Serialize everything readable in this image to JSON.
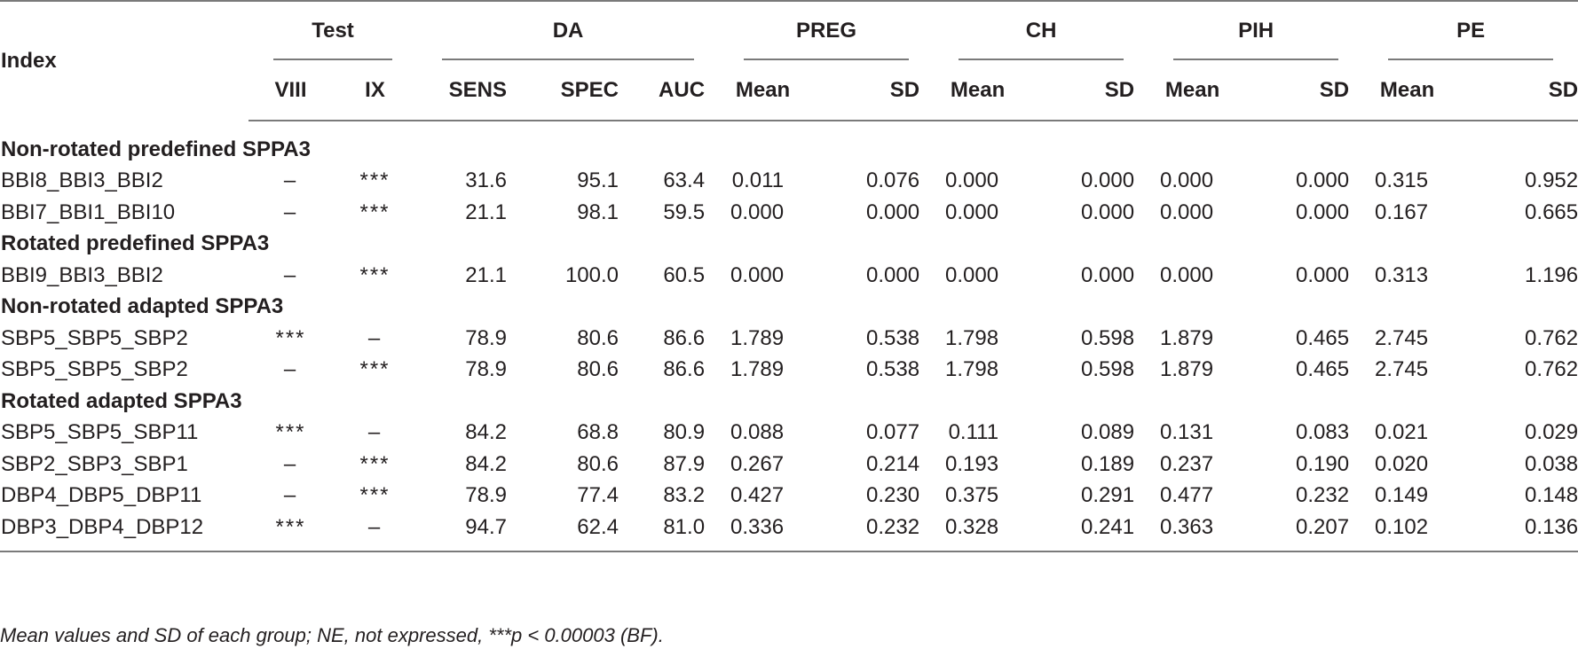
{
  "header": {
    "index": "Index",
    "test": "Test",
    "da": "DA",
    "preg": "PREG",
    "ch": "CH",
    "pih": "PIH",
    "pe": "PE",
    "sub": {
      "viii": "VIII",
      "ix": "IX",
      "sens": "SENS",
      "spec": "SPEC",
      "auc": "AUC",
      "mean": "Mean",
      "sd": "SD"
    }
  },
  "sections": [
    {
      "title": "Non-rotated predefined SPPA3",
      "rows": [
        [
          "BBI8_BBI3_BBI2",
          "–",
          "***",
          "31.6",
          "95.1",
          "63.4",
          "0.011",
          "0.076",
          "0.000",
          "0.000",
          "0.000",
          "0.000",
          "0.315",
          "0.952"
        ],
        [
          "BBI7_BBI1_BBI10",
          "–",
          "***",
          "21.1",
          "98.1",
          "59.5",
          "0.000",
          "0.000",
          "0.000",
          "0.000",
          "0.000",
          "0.000",
          "0.167",
          "0.665"
        ]
      ]
    },
    {
      "title": "Rotated predefined SPPA3",
      "rows": [
        [
          "BBI9_BBI3_BBI2",
          "–",
          "***",
          "21.1",
          "100.0",
          "60.5",
          "0.000",
          "0.000",
          "0.000",
          "0.000",
          "0.000",
          "0.000",
          "0.313",
          "1.196"
        ]
      ]
    },
    {
      "title": "Non-rotated adapted SPPA3",
      "rows": [
        [
          "SBP5_SBP5_SBP2",
          "***",
          "–",
          "78.9",
          "80.6",
          "86.6",
          "1.789",
          "0.538",
          "1.798",
          "0.598",
          "1.879",
          "0.465",
          "2.745",
          "0.762"
        ],
        [
          "SBP5_SBP5_SBP2",
          "–",
          "***",
          "78.9",
          "80.6",
          "86.6",
          "1.789",
          "0.538",
          "1.798",
          "0.598",
          "1.879",
          "0.465",
          "2.745",
          "0.762"
        ]
      ]
    },
    {
      "title": "Rotated adapted SPPA3",
      "rows": [
        [
          "SBP5_SBP5_SBP11",
          "***",
          "–",
          "84.2",
          "68.8",
          "80.9",
          "0.088",
          "0.077",
          "0.111",
          "0.089",
          "0.131",
          "0.083",
          "0.021",
          "0.029"
        ],
        [
          "SBP2_SBP3_SBP1",
          "–",
          "***",
          "84.2",
          "80.6",
          "87.9",
          "0.267",
          "0.214",
          "0.193",
          "0.189",
          "0.237",
          "0.190",
          "0.020",
          "0.038"
        ],
        [
          "DBP4_DBP5_DBP11",
          "–",
          "***",
          "78.9",
          "77.4",
          "83.2",
          "0.427",
          "0.230",
          "0.375",
          "0.291",
          "0.477",
          "0.232",
          "0.149",
          "0.148"
        ],
        [
          "DBP3_DBP4_DBP12",
          "***",
          "–",
          "94.7",
          "62.4",
          "81.0",
          "0.336",
          "0.232",
          "0.328",
          "0.241",
          "0.363",
          "0.207",
          "0.102",
          "0.136"
        ]
      ]
    }
  ],
  "footnote": "Mean values and SD of each group; NE, not expressed, ***p < 0.00003 (BF)."
}
